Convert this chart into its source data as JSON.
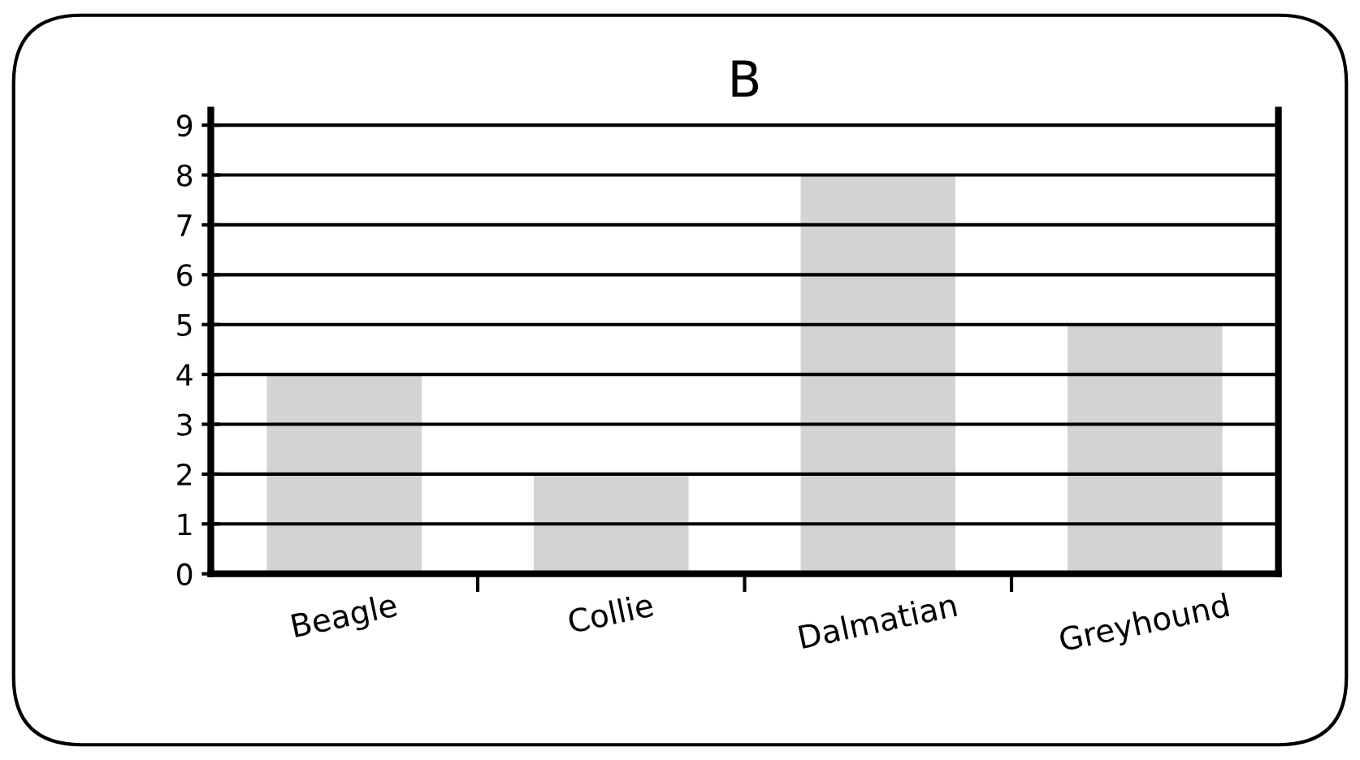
{
  "chart_data": {
    "type": "bar",
    "title": "B",
    "categories": [
      "Beagle",
      "Collie",
      "Dalmatian",
      "Greyhound"
    ],
    "values": [
      4,
      2,
      8,
      5
    ],
    "color": "#d3d3d3",
    "ylim": [
      0,
      9.3
    ],
    "yticks": [
      0,
      1,
      2,
      3,
      4,
      5,
      6,
      7,
      8,
      9
    ],
    "grid": "y"
  }
}
